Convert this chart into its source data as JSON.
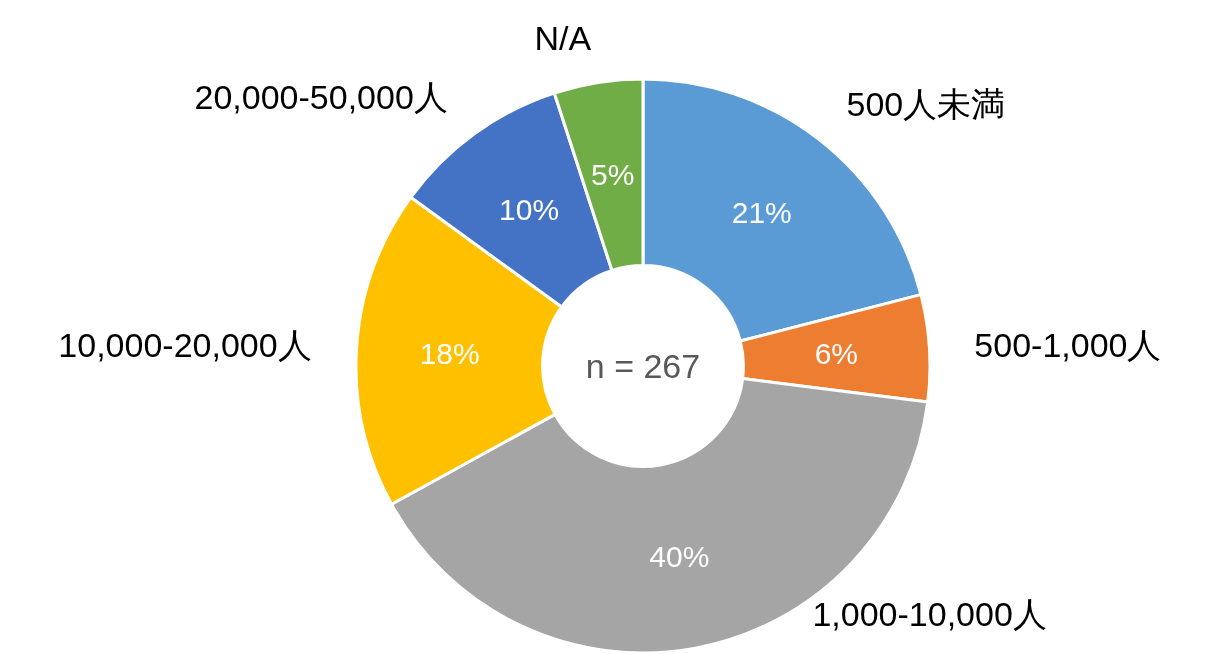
{
  "chart_data": {
    "type": "donut",
    "categories": [
      "500人未満",
      "500-1,000人",
      "1,000-10,000人",
      "10,000-20,000人",
      "20,000-50,000人",
      "N/A"
    ],
    "values": [
      21,
      6,
      40,
      18,
      10,
      5
    ],
    "colors": [
      "#5b9bd5",
      "#ed7d31",
      "#a5a5a5",
      "#ffc000",
      "#4472c4",
      "#70ad47"
    ],
    "value_labels": [
      "21%",
      "6%",
      "40%",
      "18%",
      "10%",
      "5%"
    ],
    "annotations": [
      "n = 267"
    ]
  }
}
